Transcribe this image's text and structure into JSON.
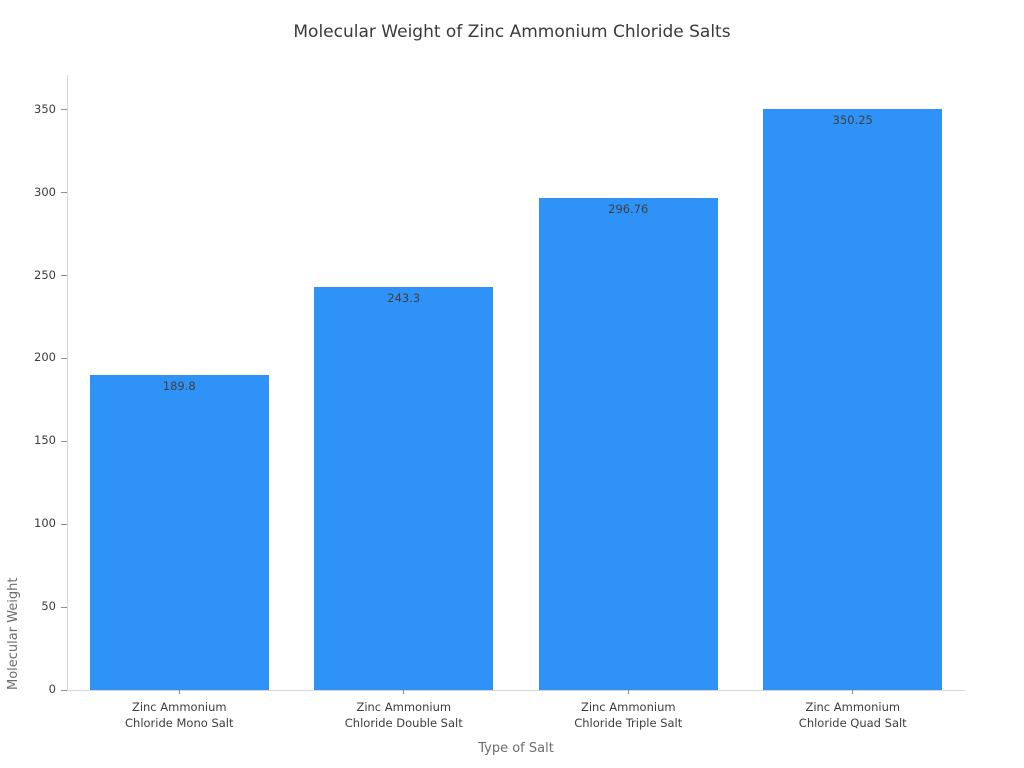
{
  "chart_data": {
    "type": "bar",
    "title": "Molecular Weight of Zinc Ammonium Chloride Salts",
    "xlabel": "Type of Salt",
    "ylabel": "Molecular Weight",
    "categories": [
      [
        "Zinc Ammonium",
        "Chloride Mono Salt"
      ],
      [
        "Zinc Ammonium",
        "Chloride Double Salt"
      ],
      [
        "Zinc Ammonium",
        "Chloride Triple Salt"
      ],
      [
        "Zinc Ammonium",
        "Chloride Quad Salt"
      ]
    ],
    "values": [
      189.8,
      243.3,
      296.76,
      350.25
    ],
    "value_labels": [
      "189.8",
      "243.3",
      "296.76",
      "350.25"
    ],
    "yticks": [
      0,
      50,
      100,
      150,
      200,
      250,
      300,
      350
    ],
    "ytick_labels": [
      "0",
      "50",
      "100",
      "150",
      "200",
      "250",
      "300",
      "350"
    ],
    "ylim": [
      0,
      371
    ],
    "grid": false,
    "legend": "none",
    "bar_color": "#2E92F7",
    "value_label_position": "inside-top"
  },
  "colors": {
    "background": "#ffffff",
    "bar": "#2E92F7",
    "title_text": "#3a3a3a",
    "tick_text": "#3d3d3d",
    "axis_title_text": "#6d6d6d",
    "spine": "#d5d5d5",
    "tick_mark": "#8c8c8c"
  }
}
